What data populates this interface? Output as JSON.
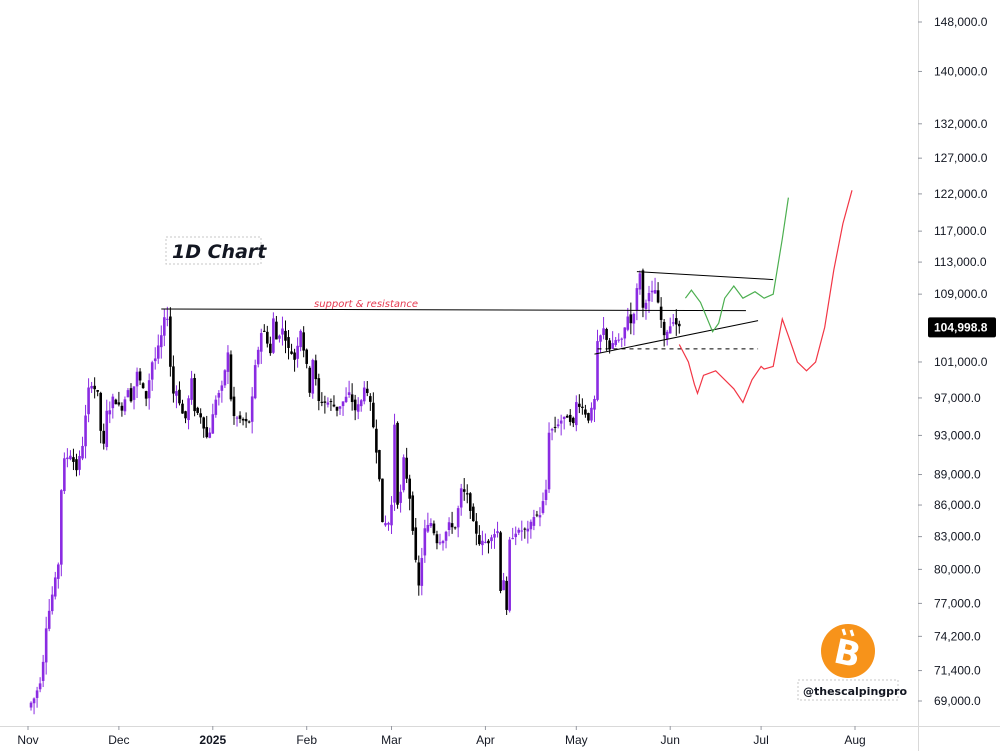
{
  "chart_data": {
    "type": "candlestick",
    "title": "1D Chart",
    "price_scale": "log",
    "y_ticks": [
      "148,000.0",
      "140,000.0",
      "132,000.0",
      "127,000.0",
      "122,000.0",
      "117,000.0",
      "113,000.0",
      "109,000.0",
      "104,998.8",
      "101,000.0",
      "97,000.0",
      "93,000.0",
      "89,000.0",
      "86,000.0",
      "83,000.0",
      "80,000.0",
      "77,000.0",
      "74,200.0",
      "71,400.0",
      "69,000.0"
    ],
    "y_tick_values": [
      148000,
      140000,
      132000,
      127000,
      122000,
      117000,
      113000,
      109000,
      101000,
      97000,
      93000,
      89000,
      86000,
      83000,
      80000,
      77000,
      74200,
      71400,
      69000
    ],
    "x_ticks": [
      "Nov",
      "Dec",
      "2025",
      "Feb",
      "Mar",
      "Apr",
      "May",
      "Jun",
      "Jul",
      "Aug"
    ],
    "x_tick_dates": [
      "2024-11-01",
      "2024-12-01",
      "2025-01-01",
      "2025-02-01",
      "2025-03-01",
      "2025-04-01",
      "2025-05-01",
      "2025-06-01",
      "2025-07-01",
      "2025-08-01"
    ],
    "current_price": "104,998.8",
    "current_price_value": 104998.8,
    "annotations": {
      "support_resistance_label": "support & resistance",
      "support_resistance_level": 107000,
      "handle": "@thescalpingpro"
    },
    "price_path": [
      [
        "2024-11-01",
        68500
      ],
      [
        "2024-11-03",
        69200
      ],
      [
        "2024-11-05",
        70500
      ],
      [
        "2024-11-06",
        72200
      ],
      [
        "2024-11-07",
        75000
      ],
      [
        "2024-11-11",
        80500
      ],
      [
        "2024-11-12",
        87500
      ],
      [
        "2024-11-13",
        90500
      ],
      [
        "2024-11-15",
        91000
      ],
      [
        "2024-11-16",
        90300
      ],
      [
        "2024-11-17",
        89500
      ],
      [
        "2024-11-19",
        92000
      ],
      [
        "2024-11-21",
        98000
      ],
      [
        "2024-11-22",
        98500
      ],
      [
        "2024-11-24",
        97500
      ],
      [
        "2024-11-25",
        93500
      ],
      [
        "2024-11-26",
        92000
      ],
      [
        "2024-11-27",
        95500
      ],
      [
        "2024-11-28",
        95800
      ],
      [
        "2024-11-29",
        97000
      ],
      [
        "2024-11-30",
        96500
      ],
      [
        "2024-12-02",
        95800
      ],
      [
        "2024-12-04",
        98000
      ],
      [
        "2024-12-05",
        96800
      ],
      [
        "2024-12-07",
        99800
      ],
      [
        "2024-12-10",
        97000
      ],
      [
        "2024-12-12",
        101000
      ],
      [
        "2024-12-13",
        101400
      ],
      [
        "2024-12-15",
        104000
      ],
      [
        "2024-12-16",
        106000
      ],
      [
        "2024-12-17",
        106200
      ],
      [
        "2024-12-18",
        100500
      ],
      [
        "2024-12-19",
        97500
      ],
      [
        "2024-12-20",
        97800
      ],
      [
        "2024-12-22",
        95300
      ],
      [
        "2024-12-23",
        94800
      ],
      [
        "2024-12-25",
        99000
      ],
      [
        "2024-12-26",
        95700
      ],
      [
        "2024-12-28",
        95000
      ],
      [
        "2024-12-30",
        92800
      ],
      [
        "2024-12-31",
        93400
      ],
      [
        "2025-01-02",
        96900
      ],
      [
        "2025-01-04",
        98200
      ],
      [
        "2025-01-06",
        102000
      ],
      [
        "2025-01-07",
        96900
      ],
      [
        "2025-01-08",
        95000
      ],
      [
        "2025-01-10",
        94700
      ],
      [
        "2025-01-12",
        94400
      ],
      [
        "2025-01-13",
        94500
      ],
      [
        "2025-01-14",
        97000
      ],
      [
        "2025-01-15",
        100500
      ],
      [
        "2025-01-17",
        104400
      ],
      [
        "2025-01-18",
        104500
      ],
      [
        "2025-01-20",
        102000
      ],
      [
        "2025-01-21",
        106000
      ],
      [
        "2025-01-22",
        103600
      ],
      [
        "2025-01-24",
        104800
      ],
      [
        "2025-01-26",
        102500
      ],
      [
        "2025-01-27",
        102000
      ],
      [
        "2025-01-28",
        101300
      ],
      [
        "2025-01-30",
        104700
      ],
      [
        "2025-01-31",
        102400
      ],
      [
        "2025-02-01",
        100600
      ],
      [
        "2025-02-02",
        97700
      ],
      [
        "2025-02-03",
        101300
      ],
      [
        "2025-02-05",
        96600
      ],
      [
        "2025-02-07",
        96500
      ],
      [
        "2025-02-09",
        96500
      ],
      [
        "2025-02-11",
        95700
      ],
      [
        "2025-02-13",
        96600
      ],
      [
        "2025-02-15",
        97500
      ],
      [
        "2025-02-17",
        95700
      ],
      [
        "2025-02-19",
        96700
      ],
      [
        "2025-02-20",
        98300
      ],
      [
        "2025-02-22",
        96400
      ],
      [
        "2025-02-24",
        91400
      ],
      [
        "2025-02-25",
        88700
      ],
      [
        "2025-02-26",
        84200
      ],
      [
        "2025-02-28",
        84300
      ],
      [
        "2025-03-01",
        86000
      ],
      [
        "2025-03-02",
        94200
      ],
      [
        "2025-03-03",
        86200
      ],
      [
        "2025-03-04",
        87200
      ],
      [
        "2025-03-05",
        90600
      ],
      [
        "2025-03-07",
        86700
      ],
      [
        "2025-03-09",
        80700
      ],
      [
        "2025-03-10",
        78500
      ],
      [
        "2025-03-12",
        83700
      ],
      [
        "2025-03-14",
        84300
      ],
      [
        "2025-03-16",
        82500
      ],
      [
        "2025-03-18",
        82700
      ],
      [
        "2025-03-20",
        84200
      ],
      [
        "2025-03-22",
        83800
      ],
      [
        "2025-03-24",
        87500
      ],
      [
        "2025-03-26",
        86900
      ],
      [
        "2025-03-28",
        84300
      ],
      [
        "2025-03-30",
        82400
      ],
      [
        "2025-03-31",
        82500
      ],
      [
        "2025-04-02",
        82500
      ],
      [
        "2025-04-03",
        83100
      ],
      [
        "2025-04-05",
        83500
      ],
      [
        "2025-04-06",
        78200
      ],
      [
        "2025-04-07",
        79100
      ],
      [
        "2025-04-08",
        76300
      ],
      [
        "2025-04-09",
        82600
      ],
      [
        "2025-04-11",
        83400
      ],
      [
        "2025-04-13",
        83600
      ],
      [
        "2025-04-15",
        83600
      ],
      [
        "2025-04-17",
        84900
      ],
      [
        "2025-04-19",
        85100
      ],
      [
        "2025-04-21",
        87500
      ],
      [
        "2025-04-22",
        93400
      ],
      [
        "2025-04-24",
        93900
      ],
      [
        "2025-04-26",
        94600
      ],
      [
        "2025-04-28",
        95000
      ],
      [
        "2025-04-30",
        94200
      ],
      [
        "2025-05-01",
        96500
      ],
      [
        "2025-05-03",
        95900
      ],
      [
        "2025-05-05",
        94700
      ],
      [
        "2025-05-07",
        96800
      ],
      [
        "2025-05-08",
        103200
      ],
      [
        "2025-05-10",
        104800
      ],
      [
        "2025-05-12",
        102500
      ],
      [
        "2025-05-14",
        103500
      ],
      [
        "2025-05-16",
        103500
      ],
      [
        "2025-05-18",
        106400
      ],
      [
        "2025-05-19",
        105500
      ],
      [
        "2025-05-20",
        106800
      ],
      [
        "2025-05-21",
        109600
      ],
      [
        "2025-05-22",
        111700
      ],
      [
        "2025-05-23",
        107300
      ],
      [
        "2025-05-25",
        109000
      ],
      [
        "2025-05-27",
        109500
      ],
      [
        "2025-05-28",
        107800
      ],
      [
        "2025-05-30",
        103900
      ],
      [
        "2025-05-31",
        104600
      ],
      [
        "2025-06-02",
        105800
      ],
      [
        "2025-06-03",
        105400
      ],
      [
        "2025-06-04",
        104998.8
      ]
    ],
    "projection_bullish": [
      [
        "2025-06-06",
        108500
      ],
      [
        "2025-06-08",
        109500
      ],
      [
        "2025-06-11",
        108000
      ],
      [
        "2025-06-15",
        104500
      ],
      [
        "2025-06-17",
        105500
      ],
      [
        "2025-06-19",
        108500
      ],
      [
        "2025-06-22",
        110000
      ],
      [
        "2025-06-25",
        108500
      ],
      [
        "2025-06-29",
        109300
      ],
      [
        "2025-07-02",
        108500
      ],
      [
        "2025-07-05",
        109000
      ],
      [
        "2025-07-08",
        116000
      ],
      [
        "2025-07-10",
        121500
      ]
    ],
    "projection_bearish": [
      [
        "2025-06-04",
        103000
      ],
      [
        "2025-06-07",
        101000
      ],
      [
        "2025-06-09",
        98500
      ],
      [
        "2025-06-10",
        97500
      ],
      [
        "2025-06-12",
        99500
      ],
      [
        "2025-06-16",
        100000
      ],
      [
        "2025-06-22",
        98000
      ],
      [
        "2025-06-25",
        96500
      ],
      [
        "2025-06-28",
        99000
      ],
      [
        "2025-07-01",
        100500
      ],
      [
        "2025-07-02",
        100200
      ],
      [
        "2025-07-05",
        100500
      ],
      [
        "2025-07-08",
        106000
      ],
      [
        "2025-07-10",
        104000
      ],
      [
        "2025-07-13",
        101000
      ],
      [
        "2025-07-16",
        100000
      ],
      [
        "2025-07-19",
        101000
      ],
      [
        "2025-07-22",
        105000
      ],
      [
        "2025-07-25",
        112000
      ],
      [
        "2025-07-28",
        118000
      ],
      [
        "2025-07-31",
        122500
      ]
    ],
    "trend_lines": [
      {
        "role": "support-resistance",
        "from": [
          "2024-12-15",
          107200
        ],
        "to": [
          "2025-06-26",
          107000
        ],
        "color": "#000000"
      },
      {
        "role": "triangle-upper",
        "from": [
          "2025-05-21",
          111800
        ],
        "to": [
          "2025-07-05",
          110800
        ],
        "color": "#000000"
      },
      {
        "role": "triangle-lower",
        "from": [
          "2025-05-07",
          101900
        ],
        "to": [
          "2025-06-30",
          105800
        ],
        "color": "#000000"
      },
      {
        "role": "dashed-support",
        "from": [
          "2025-05-08",
          102500
        ],
        "to": [
          "2025-06-30",
          102500
        ],
        "color": "#000000",
        "dashed": true
      }
    ],
    "colors": {
      "up_candle": "#8a2be2",
      "down_candle": "#000000",
      "bullish_path": "#4caf50",
      "bearish_path": "#f23645",
      "price_tag_bg": "#000000",
      "bitcoin_orange": "#f7931a"
    }
  }
}
